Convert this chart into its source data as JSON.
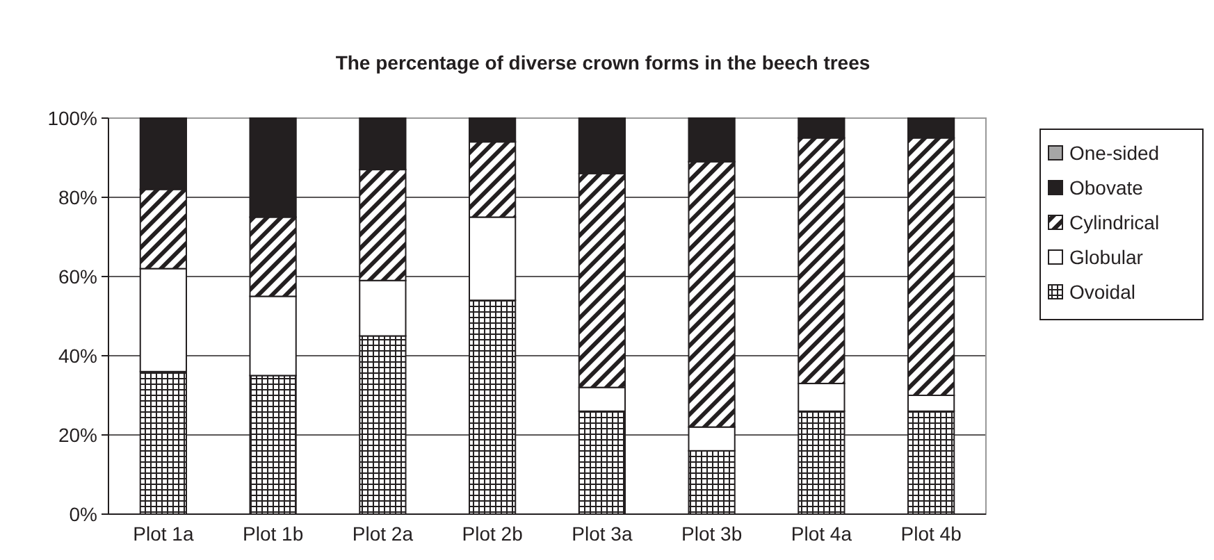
{
  "chart_data": {
    "type": "bar",
    "title": "The percentage of diverse crown forms in the beech trees",
    "categories": [
      "Plot 1a",
      "Plot 1b",
      "Plot 2a",
      "Plot 2b",
      "Plot 3a",
      "Plot 3b",
      "Plot 4a",
      "Plot 4b"
    ],
    "stacked": true,
    "ylim": [
      0,
      100
    ],
    "yticks": [
      {
        "value": 0,
        "label": "0%"
      },
      {
        "value": 20,
        "label": "20%"
      },
      {
        "value": 40,
        "label": "40%"
      },
      {
        "value": 60,
        "label": "60%"
      },
      {
        "value": 80,
        "label": "80%"
      },
      {
        "value": 100,
        "label": "100%"
      }
    ],
    "grid": "y",
    "legend": "right",
    "series": [
      {
        "name": "Ovoidal",
        "color": "#231f20",
        "values": [
          36,
          35,
          45,
          54,
          26,
          16,
          26,
          26
        ]
      },
      {
        "name": "Globular",
        "color": "#ffffff",
        "values": [
          26,
          20,
          14,
          21,
          6,
          6,
          7,
          4
        ]
      },
      {
        "name": "Cylindrical",
        "color": "#231f20",
        "values": [
          20,
          20,
          28,
          19,
          54,
          67,
          62,
          65
        ]
      },
      {
        "name": "Obovate",
        "color": "#231f20",
        "values": [
          18,
          25,
          13,
          6,
          14,
          11,
          5,
          5
        ]
      },
      {
        "name": "One-sided",
        "color": "#a6a6a6",
        "values": [
          0,
          0,
          0,
          0,
          0,
          0,
          0,
          0
        ]
      }
    ]
  }
}
